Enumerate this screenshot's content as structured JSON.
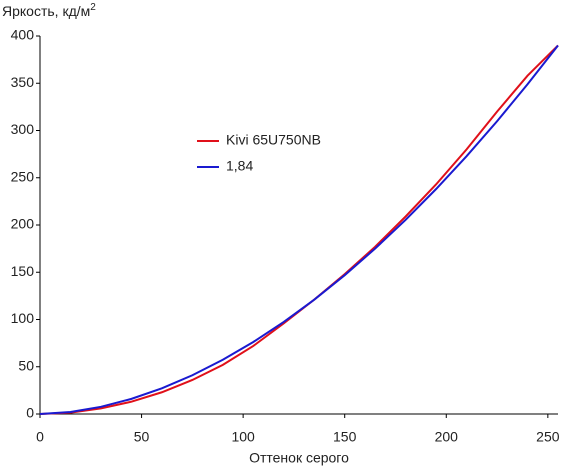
{
  "chart_data": {
    "type": "line",
    "y_label": "Яркость, кд/м",
    "y_label_sup": "2",
    "x_label": "Оттенок серого",
    "x": [
      0,
      15,
      30,
      45,
      60,
      75,
      90,
      105,
      120,
      135,
      150,
      165,
      180,
      195,
      210,
      225,
      240,
      255
    ],
    "series": [
      {
        "name": "Kivi 65U750NB",
        "color": "#e0101a",
        "values": [
          0,
          1.5,
          6,
          13,
          23,
          36,
          52,
          72,
          96,
          121,
          148,
          177,
          209,
          243,
          280,
          320,
          358,
          390
        ]
      },
      {
        "name": "1,84",
        "color": "#1a1ad0",
        "values": [
          0,
          2.1,
          7.6,
          16,
          27.2,
          41,
          57.4,
          76.2,
          97.4,
          121,
          146.9,
          175.1,
          205.5,
          238.1,
          272.8,
          309.8,
          348.9,
          390
        ]
      }
    ],
    "xlim": [
      0,
      255
    ],
    "xticks": [
      0,
      50,
      100,
      150,
      200,
      250
    ],
    "ylim": [
      0,
      400
    ],
    "yticks": [
      0,
      50,
      100,
      150,
      200,
      250,
      300,
      350,
      400
    ],
    "legend": "center"
  }
}
